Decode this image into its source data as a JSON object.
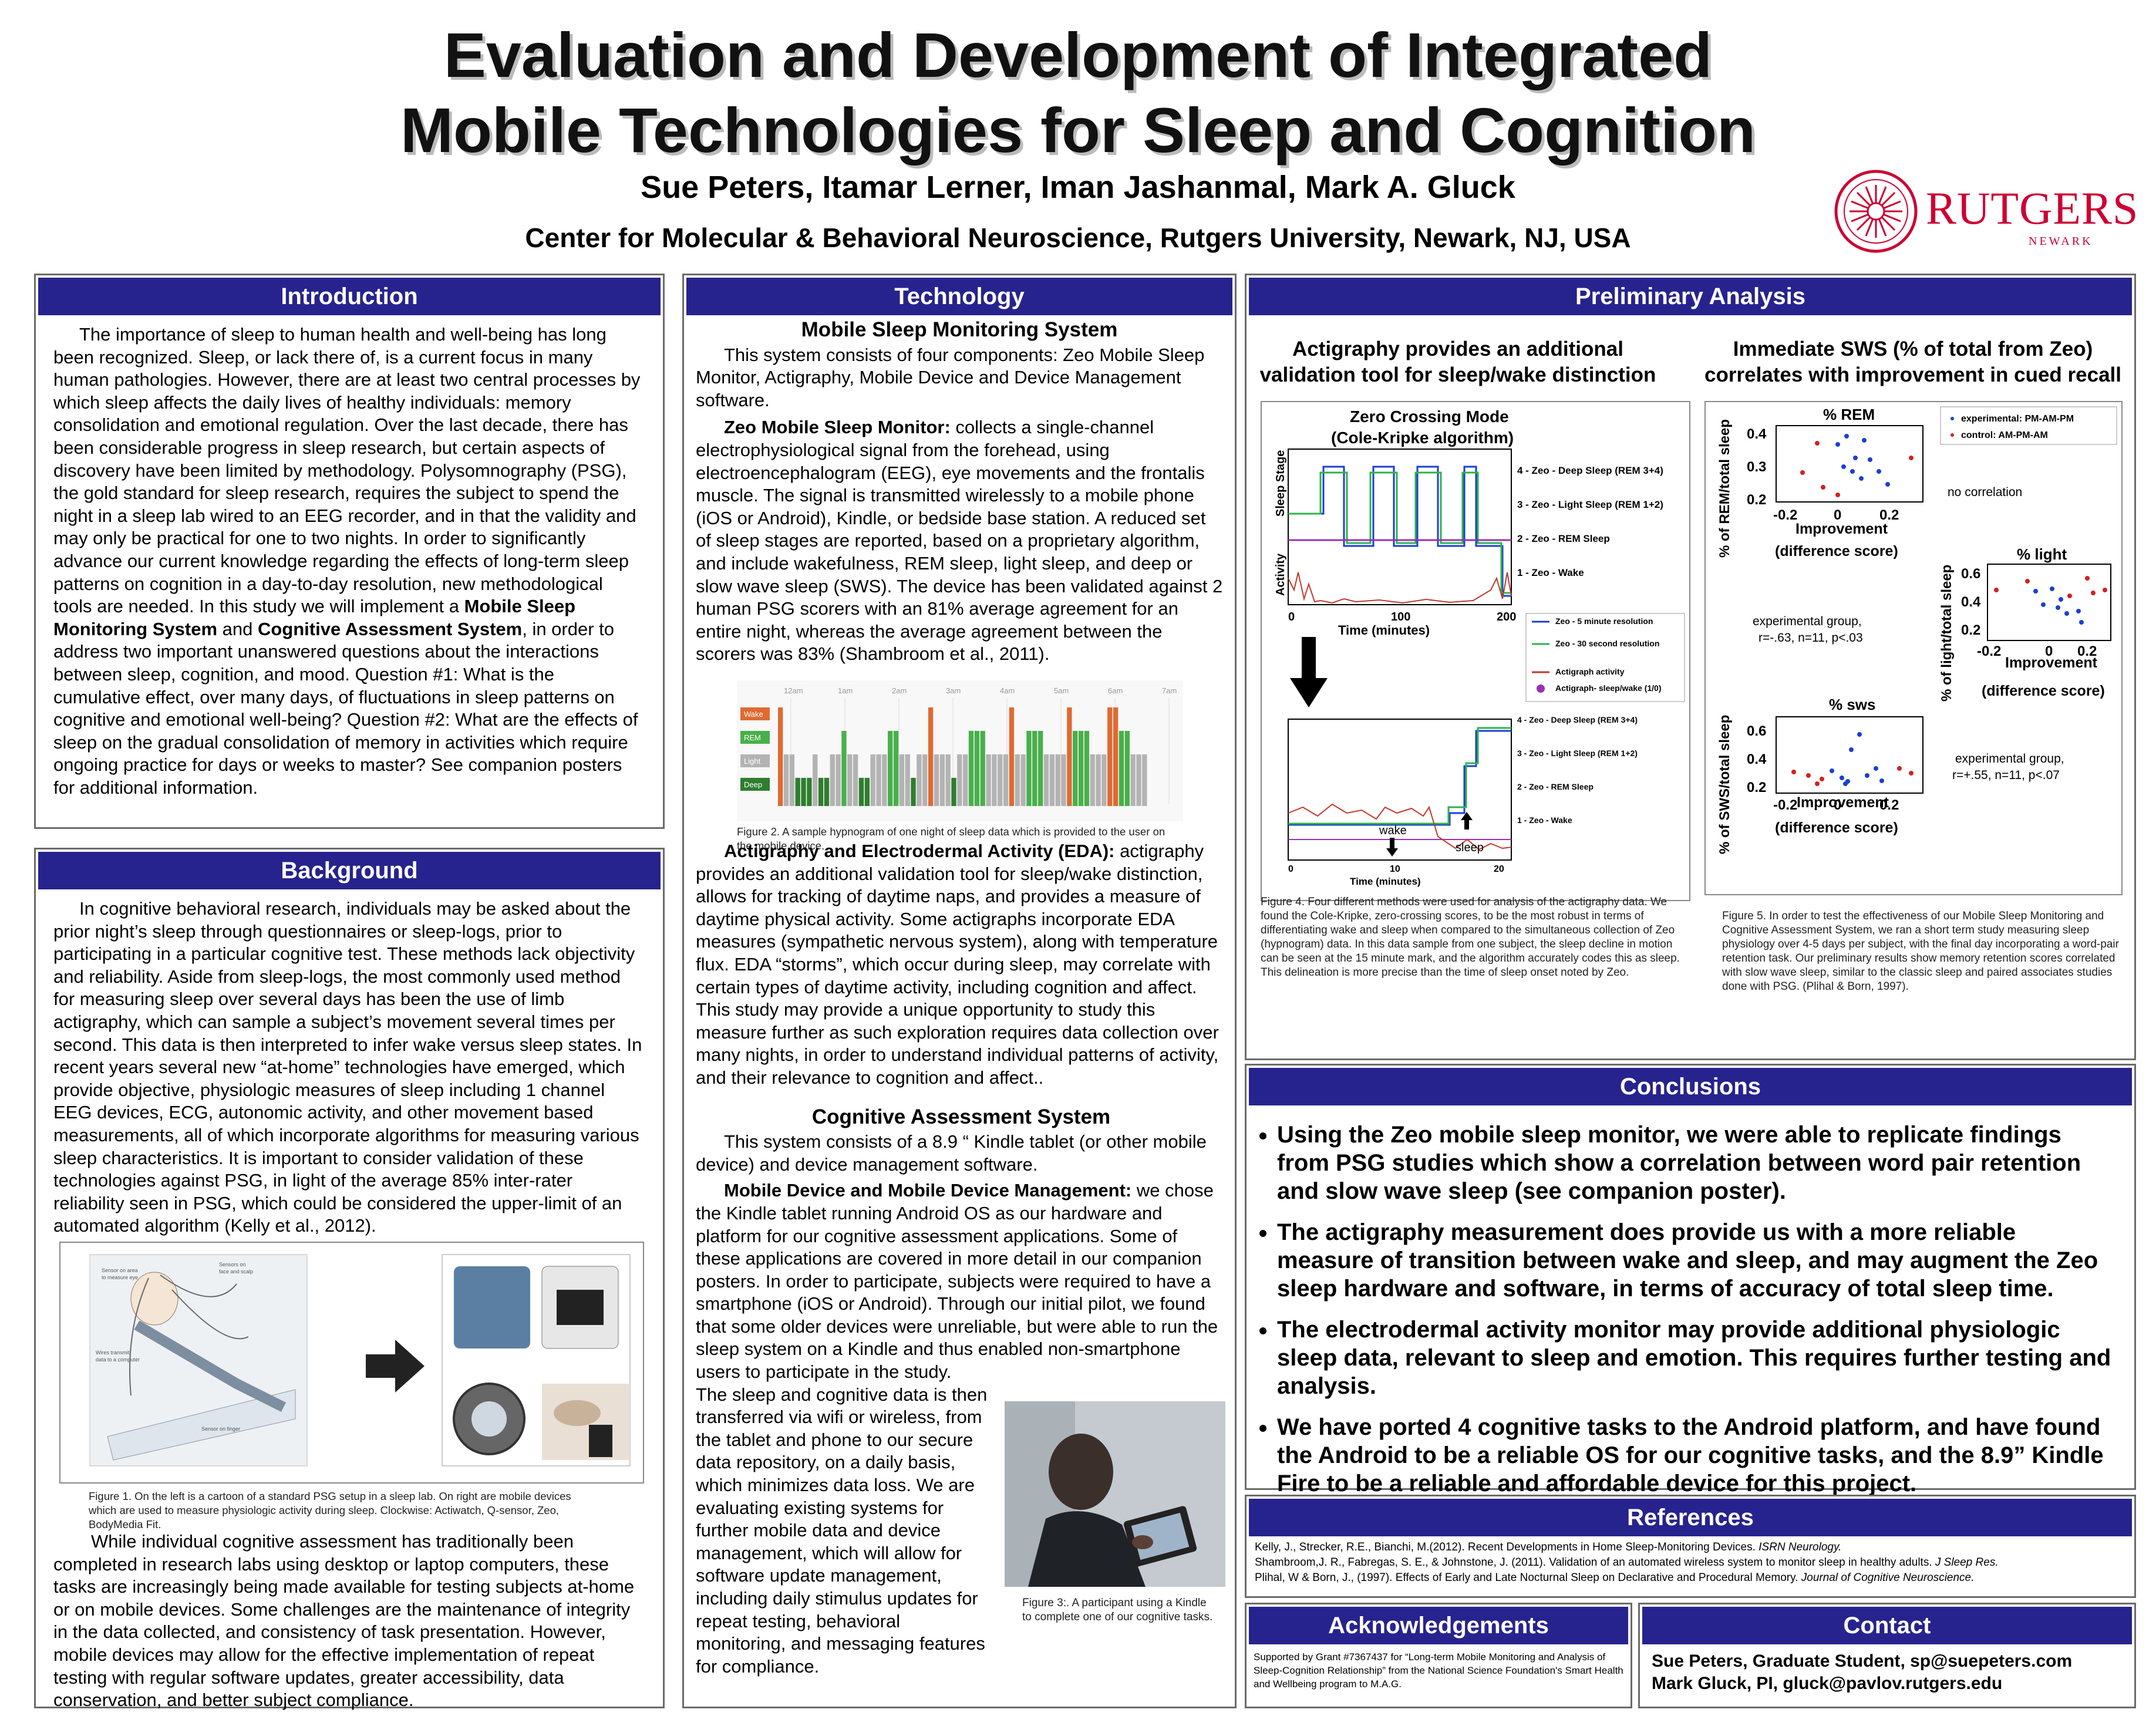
{
  "header": {
    "title_line1": "Evaluation and Development of Integrated",
    "title_line2": "Mobile Technologies for Sleep and Cognition",
    "authors": "Sue Peters, Itamar Lerner, Iman Jashanmal, Mark A. Gluck",
    "affiliation": "Center for Molecular & Behavioral Neuroscience, Rutgers University, Newark, NJ, USA",
    "logo_text": "RUTGERS",
    "logo_sub": "NEWARK"
  },
  "intro": {
    "heading": "Introduction",
    "p1a": "The importance of sleep to human health and well-being has long been recognized. Sleep, or lack there of, is a current focus in many human pathologies. However, there are at least two central processes by which sleep affects the daily lives of healthy individuals: memory consolidation and emotional regulation. Over the last decade, there has been considerable progress in sleep research, but certain aspects of discovery have been limited by methodology. Polysomnography (PSG), the gold standard for sleep research, requires the subject to spend the night in a sleep lab wired to an EEG recorder, and in that the validity and may only be practical for one to two nights. In order to significantly advance our current knowledge regarding the effects of long-term sleep patterns on cognition in a day-to-day resolution, new methodological tools are needed. In this study we will implement a ",
    "p1b": "Mobile Sleep Monitoring System",
    "p1c": " and ",
    "p1d": "Cognitive Assessment System",
    "p1e": ", in order to address two important unanswered questions about the interactions between sleep, cognition, and mood. Question #1: What is the cumulative effect, over many days, of fluctuations in sleep patterns on cognitive and emotional well-being? Question #2: What are the effects of sleep on the gradual consolidation of memory in activities which require ongoing practice for days or weeks to master? See companion posters for additional information."
  },
  "background": {
    "heading": "Background",
    "p1": "In cognitive behavioral research, individuals may be  asked about the prior night’s sleep through questionnaires or sleep-logs, prior to participating in a particular cognitive test. These methods lack objectivity and reliability. Aside from sleep-logs, the most commonly used method for measuring sleep over several days has been the use of limb actigraphy, which can sample a subject’s movement several times per second. This data is then interpreted to infer wake versus sleep states. In recent years several new “at-home” technologies have emerged, which provide objective, physiologic measures of sleep including 1 channel EEG devices, ECG, autonomic activity, and other movement based measurements, all of which incorporate algorithms for measuring various sleep characteristics. It is important to consider validation of these technologies against PSG, in light of the average 85% inter-rater reliability seen in PSG, which could be considered the upper-limit of an automated algorithm (Kelly et al., 2012).",
    "fig1_caption": "Figure 1. On the left is a cartoon of a standard PSG setup in a sleep lab. On right are mobile devices which are used to measure physiologic activity during sleep. Clockwise: Actiwatch, Q-sensor, Zeo, BodyMedia Fit.",
    "p2": "While individual cognitive assessment has traditionally been completed in research labs using desktop or laptop computers, these tasks are increasingly being made available for testing subjects at-home or on mobile devices. Some challenges are the maintenance of integrity in the data collected, and consistency of task presentation. However, mobile devices may allow for the effective implementation of repeat testing with regular software updates, greater accessibility, data conservation, and better subject compliance."
  },
  "technology": {
    "heading": "Technology",
    "sub1": "Mobile Sleep Monitoring System",
    "p1": "This system consists of four components: Zeo Mobile Sleep Monitor, Actigraphy, Mobile Device and Device Management software.",
    "zeo_label": "Zeo Mobile Sleep Monitor:",
    "zeo_text": " collects a single-channel electrophysiological signal from the forehead, using electroencephalogram (EEG), eye movements and the frontalis muscle. The signal is transmitted wirelessly to a mobile phone (iOS or Android), Kindle, or bedside base station.  A reduced set of sleep stages are reported, based on a proprietary algorithm, and include wakefulness, REM sleep, light sleep, and deep or slow wave sleep (SWS). The device has been validated against 2 human PSG scorers with an 81% average agreement for an entire night, whereas the average agreement between the scorers was 83% (Shambroom et al., 2011).",
    "hypno_times": [
      "12am",
      "1am",
      "2am",
      "3am",
      "4am",
      "5am",
      "6am",
      "7am"
    ],
    "hypno_stages": [
      "Wake",
      "REM",
      "Light",
      "Deep"
    ],
    "fig2_caption": "Figure 2. A sample hypnogram of one night of sleep data which is provided to the user on the mobile device.",
    "eda_label": "Actigraphy and Electrodermal Activity (EDA):",
    "eda_text": " actigraphy provides an additional validation tool for sleep/wake distinction, allows for tracking of daytime naps, and provides a measure of daytime physical activity. Some actigraphs incorporate EDA measures (sympathetic nervous system), along with temperature flux. EDA “storms”, which occur during sleep, may correlate with certain types of daytime activity, including cognition and affect. This study may provide a unique opportunity to study this measure further as such exploration requires data collection over many nights, in order to understand individual patterns of activity, and their relevance to cognition and affect..",
    "sub2": "Cognitive Assessment System",
    "p2": "This system consists of a 8.9 “ Kindle tablet (or other mobile device) and device management software.",
    "mdm_label": "Mobile Device and Mobile Device Management:",
    "mdm_text": " we chose the Kindle tablet running Android OS as our hardware and platform for our cognitive assessment applications. Some of these applications are covered in more detail in our companion posters. In order to participate, subjects were required to have a smartphone (iOS or Android). Through our initial pilot, we found that some older devices were unreliable, but were able to run the sleep system on a Kindle and thus enabled non-smartphone users to participate in the study.",
    "p3": "The sleep and cognitive data is then transferred via wifi or wireless, from the tablet and phone to our secure data repository, on a daily basis, which minimizes data loss.  We are evaluating existing systems for further mobile data and device management, which will allow for software update management, including daily stimulus updates for repeat testing, behavioral monitoring, and messaging features for compliance.",
    "fig3_caption": "Figure 3:. A participant using a Kindle to complete one of our cognitive tasks."
  },
  "prelim": {
    "heading": "Preliminary Analysis",
    "left_title": "Actigraphy provides an additional validation tool for sleep/wake distinction",
    "right_title": "Immediate SWS (% of total from Zeo) correlates with improvement in cued recall",
    "act_top": {
      "title1": "Zero Crossing Mode",
      "title2": "(Cole-Kripke algorithm)",
      "ylabel_top": "Sleep Stage",
      "ylabel_bottom": "Activity",
      "xlabel": "Time (minutes)",
      "xticks": [
        "0",
        "100",
        "200"
      ],
      "stage_labels": [
        "4 - Zeo - Deep Sleep (REM 3+4)",
        "3 - Zeo - Light Sleep (REM 1+2)",
        "2 - Zeo - REM Sleep",
        "1 - Zeo - Wake"
      ],
      "legend": [
        "Zeo - 5 minute resolution",
        "Zeo - 30 second resolution",
        "Actigraph activity",
        "Actigraph- sleep/wake (1/0)"
      ]
    },
    "act_bottom": {
      "stage_labels": [
        "4 - Zeo - Deep Sleep (REM 3+4)",
        "3 - Zeo - Light Sleep (REM 1+2)",
        "2 - Zeo - REM Sleep",
        "1 - Zeo - Wake"
      ],
      "xlabel": "Time (minutes)",
      "xticks": [
        "0",
        "10",
        "20"
      ],
      "wake_label": "wake",
      "sleep_label": "sleep"
    },
    "fig4_caption": "Figure 4. Four different methods were used for analysis of the actigraphy data. We found the Cole-Kripke, zero-crossing scores, to be the most robust in terms of differentiating wake and sleep when compared to the simultaneous collection of Zeo (hypnogram) data. In this data sample from one subject, the sleep decline in motion can be seen at the 15 minute mark, and the algorithm accurately codes this as sleep. This delineation is more precise than the time of sleep onset noted by Zeo.",
    "legend_exp": "experimental: PM-AM-PM",
    "legend_ctrl": "control: AM-PM-AM",
    "xlabel1": "Improvement",
    "xlabel2": "(difference score)",
    "xticks": [
      "-0.2",
      "0",
      "0.2"
    ],
    "rem": {
      "title": "% REM",
      "ylabel": "% of REM/total sleep",
      "yticks": [
        "0.4",
        "0.3",
        "0.2"
      ],
      "note": "no correlation"
    },
    "light": {
      "title": "% light",
      "ylabel": "% of light/total sleep",
      "yticks": [
        "0.6",
        "0.4",
        "0.2"
      ],
      "note1": "experimental group,",
      "note2": "r=-.63, n=11, p<.03"
    },
    "sws": {
      "title": "% sws",
      "ylabel": "% of SWS/total sleep",
      "yticks": [
        "0.6",
        "0.4",
        "0.2"
      ],
      "note1": "experimental group,",
      "note2": "r=+.55, n=11, p<.07"
    },
    "fig5_caption": "Figure 5. In order to test the effectiveness of our Mobile Sleep Monitoring and Cognitive Assessment System, we ran a short term study measuring sleep physiology over 4-5 days per subject, with the final day incorporating a word-pair retention task. Our preliminary results show memory retention scores correlated with slow wave sleep, similar to the classic sleep and paired associates studies done with PSG. (Plihal & Born, 1997)."
  },
  "conclusions": {
    "heading": "Conclusions",
    "items": [
      "Using the Zeo mobile sleep monitor, we were able to replicate findings from PSG studies which show a correlation between word pair retention and slow wave sleep (see companion poster).",
      "The actigraphy measurement does provide us with a more reliable measure of transition between wake and sleep, and may augment the Zeo sleep hardware and software, in terms of accuracy of total sleep time.",
      "The electrodermal activity monitor may provide additional physiologic sleep data, relevant to sleep and emotion. This requires further testing and analysis.",
      "We have ported 4 cognitive tasks to the Android platform, and have found the Android to be a reliable OS for our cognitive tasks, and the 8.9” Kindle Fire to be a reliable and affordable device for this project."
    ]
  },
  "references": {
    "heading": "References",
    "r1a": "Kelly, J., Strecker, R.E., Bianchi, M.(2012). Recent Developments in Home Sleep-Monitoring Devices. ",
    "r1b": "ISRN Neurology.",
    "r2a": "Shambroom,J. R., Fabregas, S. E., & Johnstone, J. (2011). Validation of an automated wireless system to monitor sleep in healthy adults. ",
    "r2b": "J Sleep Res.",
    "r3a": "Plihal, W & Born, J., (1997). Effects of Early and Late Nocturnal Sleep on Declarative and Procedural Memory. ",
    "r3b": "Journal of Cognitive Neuroscience."
  },
  "ack": {
    "heading": "Acknowledgements",
    "text": "Supported by Grant #7367437 for “Long-term Mobile Monitoring and Analysis of Sleep-Cognition Relationship” from the National Science Foundation's Smart Health and Wellbeing program to M.A.G."
  },
  "contact": {
    "heading": "Contact",
    "line1": "Sue Peters, Graduate Student, sp@suepeters.com",
    "line2": "Mark Gluck, PI, gluck@pavlov.rutgers.edu"
  },
  "colors": {
    "bar": "#27238e",
    "rutgers_red": "#cc0033",
    "zeo_green": "#2db34a",
    "act_red": "#c0392b",
    "purple": "#9b30b0"
  }
}
